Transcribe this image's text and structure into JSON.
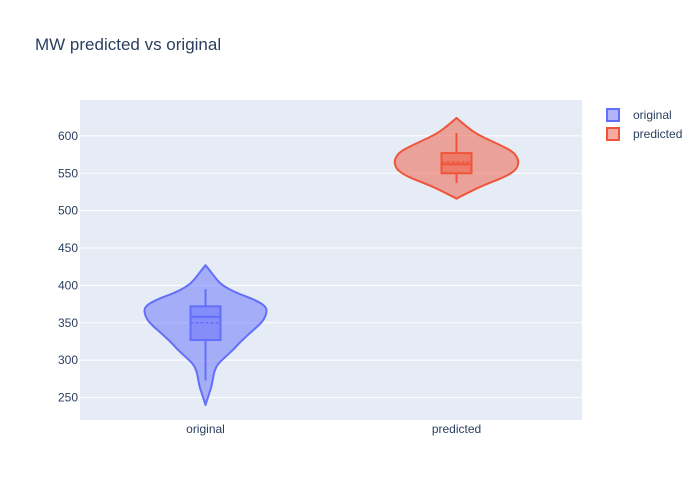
{
  "chart_data": {
    "type": "violin",
    "title": "MW predicted vs original",
    "xlabel": "",
    "ylabel": "",
    "categories": [
      "original",
      "predicted"
    ],
    "ylim": [
      220,
      648
    ],
    "yticks": [
      250,
      300,
      350,
      400,
      450,
      500,
      550,
      600
    ],
    "grid": true,
    "legend_position": "top-right",
    "series": [
      {
        "name": "original",
        "category": "original",
        "line_color": "#636efa",
        "fill_color": "rgba(99,110,250,0.5)",
        "min": 240,
        "max": 427,
        "box": {
          "q1": 327,
          "median": 358,
          "q3": 372,
          "mean": 350,
          "whisker_low": 273,
          "whisker_high": 395
        },
        "density": [
          [
            240,
            0.0
          ],
          [
            248,
            0.03
          ],
          [
            258,
            0.07
          ],
          [
            266,
            0.1
          ],
          [
            275,
            0.12
          ],
          [
            285,
            0.14
          ],
          [
            295,
            0.2
          ],
          [
            305,
            0.33
          ],
          [
            315,
            0.46
          ],
          [
            325,
            0.57
          ],
          [
            335,
            0.7
          ],
          [
            345,
            0.84
          ],
          [
            355,
            0.95
          ],
          [
            365,
            0.99
          ],
          [
            372,
            0.97
          ],
          [
            380,
            0.82
          ],
          [
            390,
            0.5
          ],
          [
            400,
            0.27
          ],
          [
            410,
            0.16
          ],
          [
            420,
            0.07
          ],
          [
            427,
            0.0
          ]
        ]
      },
      {
        "name": "predicted",
        "category": "predicted",
        "line_color": "#ef553b",
        "fill_color": "rgba(239,85,59,0.5)",
        "min": 516,
        "max": 624,
        "box": {
          "q1": 550,
          "median": 562,
          "q3": 577,
          "mean": 565,
          "whisker_low": 537,
          "whisker_high": 604
        },
        "density": [
          [
            516,
            0.0
          ],
          [
            522,
            0.14
          ],
          [
            530,
            0.33
          ],
          [
            538,
            0.56
          ],
          [
            546,
            0.8
          ],
          [
            554,
            0.95
          ],
          [
            562,
            1.0
          ],
          [
            570,
            0.99
          ],
          [
            578,
            0.92
          ],
          [
            586,
            0.75
          ],
          [
            594,
            0.54
          ],
          [
            602,
            0.34
          ],
          [
            610,
            0.2
          ],
          [
            617,
            0.1
          ],
          [
            624,
            0.0
          ]
        ]
      }
    ]
  }
}
